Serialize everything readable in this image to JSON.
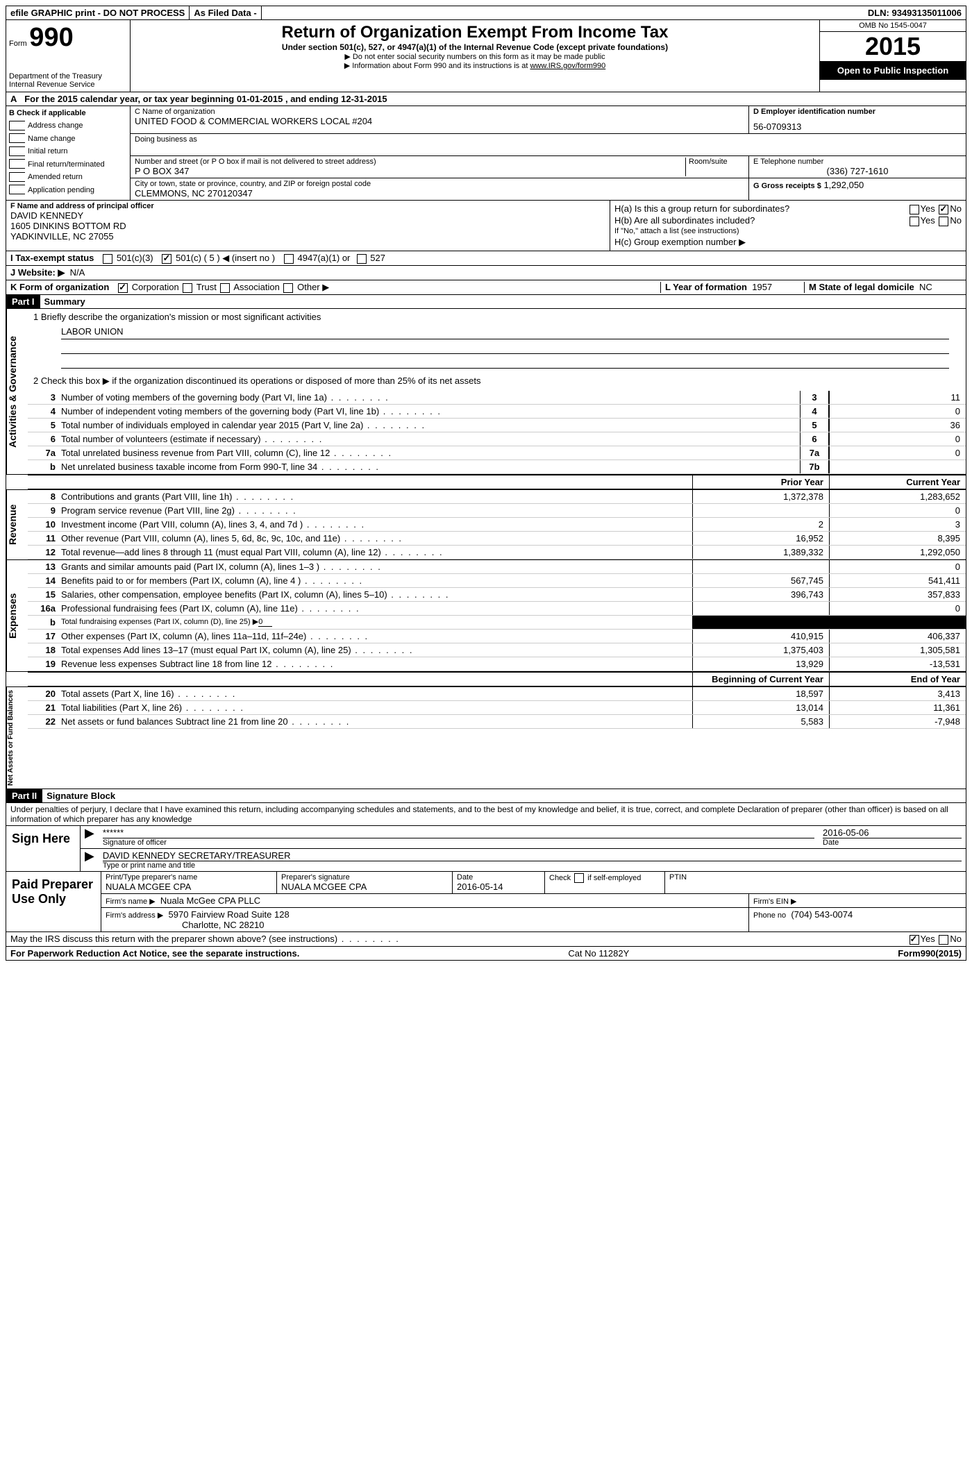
{
  "topbar": {
    "efile": "efile GRAPHIC print - DO NOT PROCESS",
    "asfiled": "As Filed Data -",
    "dln_label": "DLN:",
    "dln": "93493135011006"
  },
  "header": {
    "form_label": "Form",
    "form_no": "990",
    "dept1": "Department of the Treasury",
    "dept2": "Internal Revenue Service",
    "title": "Return of Organization Exempt From Income Tax",
    "subtitle": "Under section 501(c), 527, or 4947(a)(1) of the Internal Revenue Code (except private foundations)",
    "note1": "▶ Do not enter social security numbers on this form as it may be made public",
    "note2": "▶ Information about Form 990 and its instructions is at ",
    "note2_link": "www.IRS.gov/form990",
    "omb": "OMB No  1545-0047",
    "year": "2015",
    "open": "Open to Public Inspection"
  },
  "rowA": {
    "prefix": "A",
    "text": "For the 2015 calendar year, or tax year beginning 01-01-2015     , and ending 12-31-2015"
  },
  "colB": {
    "head": "B  Check if applicable",
    "items": [
      "Address change",
      "Name change",
      "Initial return",
      "Final return/terminated",
      "Amended return",
      "Application pending"
    ]
  },
  "colC": {
    "name_label": "C Name of organization",
    "name": "UNITED FOOD & COMMERCIAL WORKERS LOCAL #204",
    "dba_label": "Doing business as",
    "addr_label": "Number and street (or P O  box if mail is not delivered to street address)",
    "room_label": "Room/suite",
    "addr": "P O BOX 347",
    "city_label": "City or town, state or province, country, and ZIP or foreign postal code",
    "city": "CLEMMONS, NC  270120347"
  },
  "colD": {
    "ein_label": "D Employer identification number",
    "ein": "56-0709313",
    "phone_label": "E Telephone number",
    "phone": "(336) 727-1610",
    "gross_label": "G Gross receipts $",
    "gross": "1,292,050"
  },
  "fh": {
    "f_label": "F    Name and address of principal officer",
    "f_name": "DAVID KENNEDY",
    "f_addr1": "1605 DINKINS BOTTOM RD",
    "f_addr2": "YADKINVILLE, NC  27055",
    "ha": "H(a)  Is this a group return for subordinates?",
    "hb": "H(b)  Are all subordinates included?",
    "hb_note": "If \"No,\" attach a list  (see instructions)",
    "hc": "H(c)   Group exemption number ▶",
    "yes": "Yes",
    "no": "No"
  },
  "rowI": {
    "label": "I    Tax-exempt status",
    "o1": "501(c)(3)",
    "o2": "501(c) ( 5 ) ◀ (insert no )",
    "o3": "4947(a)(1) or",
    "o4": "527"
  },
  "rowJ": {
    "label": "J    Website: ▶",
    "value": "N/A"
  },
  "rowK": {
    "label": "K Form of organization",
    "opts": [
      "Corporation",
      "Trust",
      "Association",
      "Other ▶"
    ],
    "l_label": "L Year of formation",
    "l_val": "1957",
    "m_label": "M State of legal domicile",
    "m_val": "NC"
  },
  "part1": {
    "hdr": "Part I",
    "title": "Summary"
  },
  "governance": {
    "side": "Activities & Governance",
    "l1": "1 Briefly describe the organization's mission or most significant activities",
    "mission": "LABOR UNION",
    "l2": "2  Check this box ▶        if the organization discontinued its operations or disposed of more than 25% of its net assets",
    "rows": [
      {
        "n": "3",
        "t": "Number of voting members of the governing body (Part VI, line 1a)",
        "box": "3",
        "v": "11"
      },
      {
        "n": "4",
        "t": "Number of independent voting members of the governing body (Part VI, line 1b)",
        "box": "4",
        "v": "0"
      },
      {
        "n": "5",
        "t": "Total number of individuals employed in calendar year 2015 (Part V, line 2a)",
        "box": "5",
        "v": "36"
      },
      {
        "n": "6",
        "t": "Total number of volunteers (estimate if necessary)",
        "box": "6",
        "v": "0"
      },
      {
        "n": "7a",
        "t": "Total unrelated business revenue from Part VIII, column (C), line 12",
        "box": "7a",
        "v": "0"
      },
      {
        "n": "b",
        "t": "Net unrelated business taxable income from Form 990-T, line 34",
        "box": "7b",
        "v": ""
      }
    ]
  },
  "twocol_hdr": {
    "prior": "Prior Year",
    "current": "Current Year"
  },
  "revenue": {
    "side": "Revenue",
    "rows": [
      {
        "n": "8",
        "t": "Contributions and grants (Part VIII, line 1h)",
        "p": "1,372,378",
        "c": "1,283,652"
      },
      {
        "n": "9",
        "t": "Program service revenue (Part VIII, line 2g)",
        "p": "",
        "c": "0"
      },
      {
        "n": "10",
        "t": "Investment income (Part VIII, column (A), lines 3, 4, and 7d )",
        "p": "2",
        "c": "3"
      },
      {
        "n": "11",
        "t": "Other revenue (Part VIII, column (A), lines 5, 6d, 8c, 9c, 10c, and 11e)",
        "p": "16,952",
        "c": "8,395"
      },
      {
        "n": "12",
        "t": "Total revenue—add lines 8 through 11 (must equal Part VIII, column (A), line 12)",
        "p": "1,389,332",
        "c": "1,292,050"
      }
    ]
  },
  "expenses": {
    "side": "Expenses",
    "rows": [
      {
        "n": "13",
        "t": "Grants and similar amounts paid (Part IX, column (A), lines 1–3 )",
        "p": "",
        "c": "0"
      },
      {
        "n": "14",
        "t": "Benefits paid to or for members (Part IX, column (A), line 4 )",
        "p": "567,745",
        "c": "541,411"
      },
      {
        "n": "15",
        "t": "Salaries, other compensation, employee benefits (Part IX, column (A), lines 5–10)",
        "p": "396,743",
        "c": "357,833"
      },
      {
        "n": "16a",
        "t": "Professional fundraising fees (Part IX, column (A), line 11e)",
        "p": "",
        "c": "0"
      },
      {
        "n": "b",
        "t": "Total fundraising expenses (Part IX, column (D), line 25) ▶",
        "p": "BLACK",
        "c": "BLACK",
        "u": "0"
      },
      {
        "n": "17",
        "t": "Other expenses (Part IX, column (A), lines 11a–11d, 11f–24e)",
        "p": "410,915",
        "c": "406,337"
      },
      {
        "n": "18",
        "t": "Total expenses  Add lines 13–17 (must equal Part IX, column (A), line 25)",
        "p": "1,375,403",
        "c": "1,305,581"
      },
      {
        "n": "19",
        "t": "Revenue less expenses  Subtract line 18 from line 12",
        "p": "13,929",
        "c": "-13,531"
      }
    ]
  },
  "balance_hdr": {
    "begin": "Beginning of Current Year",
    "end": "End of Year"
  },
  "netassets": {
    "side": "Net Assets or Fund Balances",
    "rows": [
      {
        "n": "20",
        "t": "Total assets (Part X, line 16)",
        "p": "18,597",
        "c": "3,413"
      },
      {
        "n": "21",
        "t": "Total liabilities (Part X, line 26)",
        "p": "13,014",
        "c": "11,361"
      },
      {
        "n": "22",
        "t": "Net assets or fund balances  Subtract line 21 from line 20",
        "p": "5,583",
        "c": "-7,948"
      }
    ]
  },
  "part2": {
    "hdr": "Part II",
    "title": "Signature Block"
  },
  "perjury": "Under penalties of perjury, I declare that I have examined this return, including accompanying schedules and statements, and to the best of my knowledge and belief, it is true, correct, and complete  Declaration of preparer (other than officer) is based on all information of which preparer has any knowledge",
  "sign": {
    "side": "Sign Here",
    "stars": "******",
    "sig_label": "Signature of officer",
    "date": "2016-05-06",
    "date_label": "Date",
    "name": "DAVID KENNEDY SECRETARY/TREASURER",
    "name_label": "Type or print name and title"
  },
  "prep": {
    "side": "Paid Preparer Use Only",
    "h1": "Print/Type preparer's name",
    "v1": "NUALA MCGEE CPA",
    "h2": "Preparer's signature",
    "v2": "NUALA MCGEE CPA",
    "h3": "Date",
    "v3": "2016-05-14",
    "h4": "Check        if self-employed",
    "h5": "PTIN",
    "firm_label": "Firm's name      ▶",
    "firm": "Nuala McGee CPA PLLC",
    "ein_label": "Firm's EIN ▶",
    "addr_label": "Firm's address ▶",
    "addr1": "5970 Fairview Road Suite 128",
    "addr2": "Charlotte, NC  28210",
    "phone_label": "Phone no",
    "phone": "(704) 543-0074"
  },
  "discuss": {
    "text": "May the IRS discuss this return with the preparer shown above? (see instructions)",
    "yes": "Yes",
    "no": "No"
  },
  "footer": {
    "left": "For Paperwork Reduction Act Notice, see the separate instructions.",
    "mid": "Cat  No  11282Y",
    "right": "Form 990 (2015)"
  }
}
